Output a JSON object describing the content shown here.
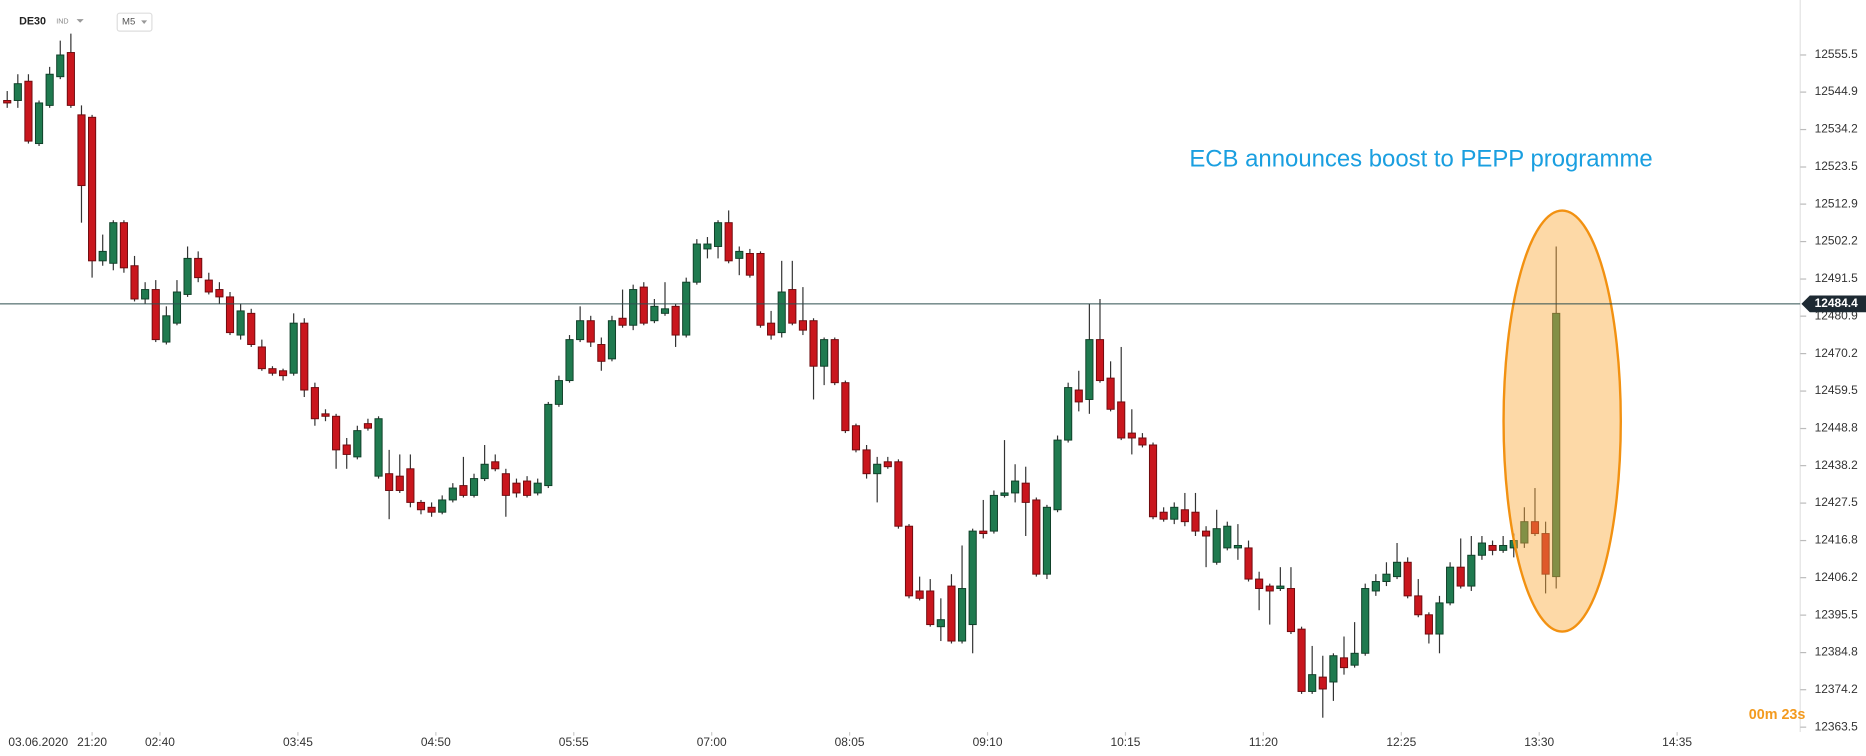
{
  "header": {
    "symbol": "DE30",
    "type": "IND",
    "timeframe": "M5"
  },
  "chart_data": {
    "type": "candlestick",
    "date_label": "03.06.2020",
    "annotation": "ECB announces boost to PEPP programme",
    "countdown": "00m 23s",
    "up_color": "#1f7a4f",
    "down_color": "#c9161d",
    "current_price": 12484.4,
    "open": [
      12542.5,
      12542.5,
      12548.0,
      12530.2,
      12541.1,
      12549.3,
      12556.2,
      12538.4,
      12537.7,
      12496.7,
      12496.0,
      12507.6,
      12495.3,
      12485.8,
      12488.5,
      12473.5,
      12478.9,
      12487.1,
      12497.4,
      12491.2,
      12488.5,
      12486.4,
      12475.5,
      12481.7,
      12472.1,
      12465.9,
      12465.3,
      12464.6,
      12478.9,
      12460.5,
      12453.0,
      12452.3,
      12444.1,
      12440.7,
      12450.2,
      12435.2,
      12435.9,
      12435.2,
      12437.3,
      12427.7,
      12426.3,
      12424.9,
      12428.4,
      12432.5,
      12429.7,
      12434.5,
      12439.3,
      12435.9,
      12433.2,
      12433.8,
      12430.4,
      12432.5,
      12455.7,
      12462.5,
      12474.2,
      12479.6,
      12472.8,
      12468.7,
      12480.3,
      12478.3,
      12489.2,
      12479.6,
      12481.7,
      12483.7,
      12475.5,
      12490.6,
      12500.1,
      12500.8,
      12507.6,
      12497.4,
      12498.8,
      12498.8,
      12478.9,
      12476.2,
      12488.5,
      12479.6,
      12479.6,
      12466.6,
      12474.2,
      12461.9,
      12449.6,
      12442.7,
      12435.9,
      12439.3,
      12439.3,
      12420.9,
      12402.4,
      12402.4,
      12392.2,
      12403.8,
      12388.1,
      12392.8,
      12419.5,
      12419.5,
      12429.7,
      12430.4,
      12433.2,
      12428.4,
      12407.2,
      12425.6,
      12445.5,
      12459.8,
      12457.1,
      12474.2,
      12463.2,
      12456.4,
      12447.5,
      12446.1,
      12444.1,
      12424.9,
      12422.9,
      12425.6,
      12424.9,
      12419.5,
      12410.6,
      12414.7,
      12414.7,
      12414.7,
      12405.8,
      12403.8,
      12403.1,
      12403.1,
      12391.5,
      12373.7,
      12377.8,
      12376.4,
      12383.3,
      12381.2,
      12384.6,
      12402.4,
      12405.1,
      12406.5,
      12410.6,
      12401.0,
      12395.6,
      12390.1,
      12399.0,
      12409.2,
      12403.8,
      12412.6,
      12415.4,
      12414.0,
      12414.7,
      12416.1,
      12422.2,
      12418.8,
      12406.5
    ],
    "high": [
      12545.2,
      12550.0,
      12550.0,
      12542.5,
      12552.1,
      12559.6,
      12561.6,
      12541.1,
      12538.4,
      12504.2,
      12508.3,
      12508.3,
      12498.1,
      12490.6,
      12491.2,
      12483.7,
      12491.2,
      12500.8,
      12499.4,
      12493.3,
      12490.6,
      12487.8,
      12484.4,
      12483.0,
      12474.2,
      12466.6,
      12465.9,
      12481.7,
      12480.3,
      12461.9,
      12454.3,
      12453.0,
      12446.1,
      12449.6,
      12451.6,
      12452.3,
      12442.7,
      12441.4,
      12441.4,
      12428.4,
      12427.7,
      12429.7,
      12433.2,
      12440.7,
      12435.9,
      12444.1,
      12441.4,
      12437.3,
      12434.5,
      12435.2,
      12434.5,
      12456.4,
      12463.9,
      12475.5,
      12483.7,
      12481.0,
      12474.8,
      12481.0,
      12488.5,
      12489.9,
      12490.6,
      12485.8,
      12490.6,
      12484.4,
      12491.9,
      12502.9,
      12503.5,
      12508.3,
      12511.1,
      12500.8,
      12500.1,
      12499.4,
      12482.4,
      12496.7,
      12496.7,
      12489.2,
      12480.3,
      12474.8,
      12474.8,
      12462.5,
      12450.2,
      12444.1,
      12440.7,
      12440.7,
      12440.0,
      12421.5,
      12406.5,
      12405.8,
      12400.3,
      12407.2,
      12415.4,
      12420.2,
      12428.4,
      12431.1,
      12445.5,
      12438.6,
      12437.9,
      12429.1,
      12427.0,
      12446.8,
      12461.9,
      12465.3,
      12484.4,
      12485.8,
      12468.0,
      12472.1,
      12454.3,
      12447.5,
      12444.8,
      12426.3,
      12427.7,
      12430.4,
      12430.4,
      12420.9,
      12425.6,
      12422.2,
      12421.5,
      12416.8,
      12407.9,
      12404.5,
      12409.2,
      12409.2,
      12392.2,
      12386.7,
      12383.9,
      12384.6,
      12389.4,
      12393.5,
      12404.5,
      12407.2,
      12410.6,
      12416.1,
      12412.0,
      12405.8,
      12396.3,
      12401.0,
      12410.6,
      12417.4,
      12418.1,
      12418.1,
      12416.8,
      12418.1,
      12418.8,
      12426.3,
      12431.8,
      12422.2,
      12500.8
    ],
    "low": [
      12540.4,
      12540.4,
      12530.2,
      12529.5,
      12540.4,
      12548.6,
      12540.4,
      12507.6,
      12491.9,
      12495.3,
      12494.0,
      12493.3,
      12485.1,
      12484.4,
      12473.5,
      12472.8,
      12478.3,
      12486.4,
      12490.6,
      12487.1,
      12484.4,
      12475.5,
      12474.2,
      12472.1,
      12465.3,
      12463.9,
      12462.5,
      12463.9,
      12457.8,
      12449.6,
      12450.9,
      12437.3,
      12437.3,
      12440.0,
      12448.2,
      12434.5,
      12422.9,
      12430.4,
      12426.3,
      12424.3,
      12423.6,
      12424.3,
      12427.7,
      12429.1,
      12429.1,
      12433.8,
      12436.6,
      12423.6,
      12429.1,
      12429.1,
      12429.7,
      12431.8,
      12455.0,
      12461.9,
      12473.5,
      12472.1,
      12465.3,
      12468.0,
      12477.6,
      12476.9,
      12478.3,
      12478.9,
      12481.0,
      12472.1,
      12474.8,
      12489.9,
      12497.4,
      12497.4,
      12496.0,
      12492.6,
      12491.9,
      12477.6,
      12474.2,
      12474.8,
      12478.3,
      12475.5,
      12457.1,
      12461.2,
      12461.2,
      12447.5,
      12442.0,
      12434.5,
      12427.7,
      12437.3,
      12420.2,
      12400.3,
      12399.7,
      12392.2,
      12388.1,
      12387.4,
      12387.4,
      12384.6,
      12417.4,
      12418.8,
      12429.1,
      12427.7,
      12418.1,
      12406.5,
      12405.8,
      12424.9,
      12444.8,
      12453.7,
      12453.0,
      12461.9,
      12453.7,
      12445.5,
      12441.4,
      12443.4,
      12422.9,
      12422.2,
      12421.5,
      12420.9,
      12418.1,
      12409.2,
      12409.9,
      12414.0,
      12411.3,
      12405.1,
      12396.9,
      12392.8,
      12402.4,
      12390.1,
      12373.0,
      12373.0,
      12366.2,
      12371.0,
      12378.5,
      12380.5,
      12383.9,
      12401.0,
      12403.8,
      12405.8,
      12400.3,
      12394.9,
      12387.4,
      12384.6,
      12398.3,
      12403.1,
      12402.4,
      12411.3,
      12412.6,
      12413.3,
      12412.0,
      12414.7,
      12418.1,
      12401.7,
      12403.1
    ],
    "close": [
      12541.8,
      12547.3,
      12530.9,
      12541.8,
      12550.0,
      12555.5,
      12541.1,
      12518.2,
      12496.7,
      12499.4,
      12507.6,
      12494.7,
      12485.8,
      12488.5,
      12474.2,
      12481.0,
      12487.8,
      12497.4,
      12491.9,
      12487.8,
      12486.4,
      12476.2,
      12482.4,
      12472.8,
      12465.9,
      12464.6,
      12463.9,
      12478.9,
      12459.8,
      12451.6,
      12452.3,
      12442.7,
      12441.4,
      12448.2,
      12448.9,
      12451.6,
      12431.1,
      12431.1,
      12427.7,
      12425.6,
      12424.9,
      12428.4,
      12431.8,
      12429.7,
      12434.5,
      12438.6,
      12437.3,
      12429.7,
      12430.4,
      12429.7,
      12433.2,
      12455.7,
      12462.5,
      12474.2,
      12479.6,
      12473.5,
      12468.0,
      12479.6,
      12478.3,
      12488.5,
      12478.9,
      12483.7,
      12483.0,
      12475.5,
      12490.6,
      12501.5,
      12501.5,
      12507.6,
      12496.7,
      12499.4,
      12492.6,
      12478.3,
      12475.5,
      12487.8,
      12478.9,
      12476.9,
      12466.6,
      12474.2,
      12461.9,
      12448.2,
      12442.7,
      12435.9,
      12438.6,
      12437.9,
      12420.9,
      12401.0,
      12400.3,
      12392.8,
      12394.2,
      12388.1,
      12403.1,
      12419.5,
      12418.8,
      12429.7,
      12430.4,
      12433.8,
      12427.7,
      12407.2,
      12426.3,
      12445.5,
      12460.5,
      12456.4,
      12474.2,
      12462.5,
      12454.3,
      12446.1,
      12446.1,
      12444.1,
      12423.6,
      12422.9,
      12426.3,
      12422.2,
      12419.5,
      12418.1,
      12420.2,
      12420.9,
      12415.4,
      12405.8,
      12403.1,
      12402.4,
      12403.8,
      12390.8,
      12373.7,
      12378.5,
      12374.4,
      12383.9,
      12380.5,
      12384.6,
      12403.1,
      12405.1,
      12407.2,
      12410.6,
      12401.0,
      12395.6,
      12390.1,
      12399.0,
      12409.2,
      12403.8,
      12412.6,
      12416.1,
      12414.0,
      12415.4,
      12416.8,
      12422.2,
      12418.8,
      12407.2,
      12481.7
    ],
    "xlim": [
      -0.68,
      169
    ],
    "xticks": [
      {
        "value": 8,
        "label": "21:20"
      },
      {
        "value": 14.4,
        "label": "02:40"
      },
      {
        "value": 27.4,
        "label": "03:45"
      },
      {
        "value": 40.4,
        "label": "04:50"
      },
      {
        "value": 53.4,
        "label": "05:55"
      },
      {
        "value": 66.4,
        "label": "07:00"
      },
      {
        "value": 79.4,
        "label": "08:05"
      },
      {
        "value": 92.4,
        "label": "09:10"
      },
      {
        "value": 105.4,
        "label": "10:15"
      },
      {
        "value": 118.4,
        "label": "11:20"
      },
      {
        "value": 131.4,
        "label": "12:25"
      },
      {
        "value": 144.4,
        "label": "13:30"
      },
      {
        "value": 157.4,
        "label": "14:35"
      }
    ],
    "ylim": [
      12362.1,
      12571.2
    ],
    "yticks": [
      12363.5,
      12374.2,
      12384.8,
      12395.5,
      12406.2,
      12416.8,
      12427.5,
      12438.2,
      12448.8,
      12459.5,
      12470.2,
      12480.9,
      12491.5,
      12502.2,
      12512.9,
      12523.5,
      12534.2,
      12544.9,
      12555.5
    ]
  }
}
